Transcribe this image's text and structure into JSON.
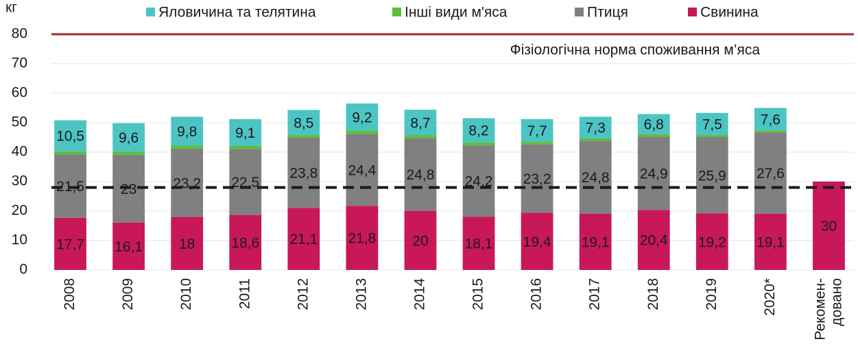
{
  "chart_data": {
    "type": "stacked_bar",
    "y_axis_label": "кг",
    "categories": [
      "2008",
      "2009",
      "2010",
      "2011",
      "2012",
      "2013",
      "2014",
      "2015",
      "2016",
      "2017",
      "2018",
      "2019",
      "2020*",
      "Рекомен-\nдовано"
    ],
    "series": [
      {
        "name": "Свинина",
        "color": "#c8185a",
        "values": [
          17.7,
          16.1,
          18,
          18.6,
          21.1,
          21.8,
          20,
          18.1,
          19.4,
          19.1,
          20.4,
          19.2,
          19.1,
          30
        ],
        "value_labels": [
          "17,7",
          "16,1",
          "18",
          "18,6",
          "21,1",
          "21,8",
          "20",
          "18,1",
          "19,4",
          "19,1",
          "20,4",
          "19,2",
          "19,1",
          "30"
        ]
      },
      {
        "name": "Птиця",
        "color": "#808080",
        "values": [
          21.5,
          23,
          23.2,
          22.5,
          23.8,
          24.4,
          24.8,
          24.2,
          23.2,
          24.8,
          24.9,
          25.9,
          27.6,
          null
        ],
        "value_labels": [
          "21,5",
          "23",
          "23,2",
          "22,5",
          "23,8",
          "24,4",
          "24,8",
          "24,2",
          "23,2",
          "24,8",
          "24,9",
          "25,9",
          "27,6",
          null
        ]
      },
      {
        "name": "Інші види м'яса",
        "color": "#5cbf3c",
        "values": [
          1.1,
          1.1,
          1.0,
          1.0,
          0.9,
          1.1,
          0.9,
          1.0,
          0.9,
          0.8,
          0.8,
          0.7,
          0.7,
          null
        ]
      },
      {
        "name": "Яловичина та телятина",
        "color": "#4dc4c4",
        "values": [
          10.5,
          9.6,
          9.8,
          9.1,
          8.5,
          9.2,
          8.7,
          8.2,
          7.7,
          7.3,
          6.8,
          7.5,
          7.6,
          null
        ],
        "value_labels": [
          "10,5",
          "9,6",
          "9,8",
          "9,1",
          "8,5",
          "9,2",
          "8,7",
          "8,2",
          "7,7",
          "7,3",
          "6,8",
          "7,5",
          "7,6",
          null
        ]
      }
    ],
    "ylim": [
      0,
      80
    ],
    "yticks": [
      0,
      10,
      20,
      30,
      40,
      50,
      60,
      70,
      80
    ],
    "grid": true,
    "legend": "top",
    "reference_lines": [
      {
        "value": 80,
        "color": "#a52a2a",
        "style": "solid",
        "label": "Фізіологічна норма споживання м’яса"
      },
      {
        "value": 28,
        "color": "#1a1a1a",
        "style": "dashed"
      }
    ]
  }
}
